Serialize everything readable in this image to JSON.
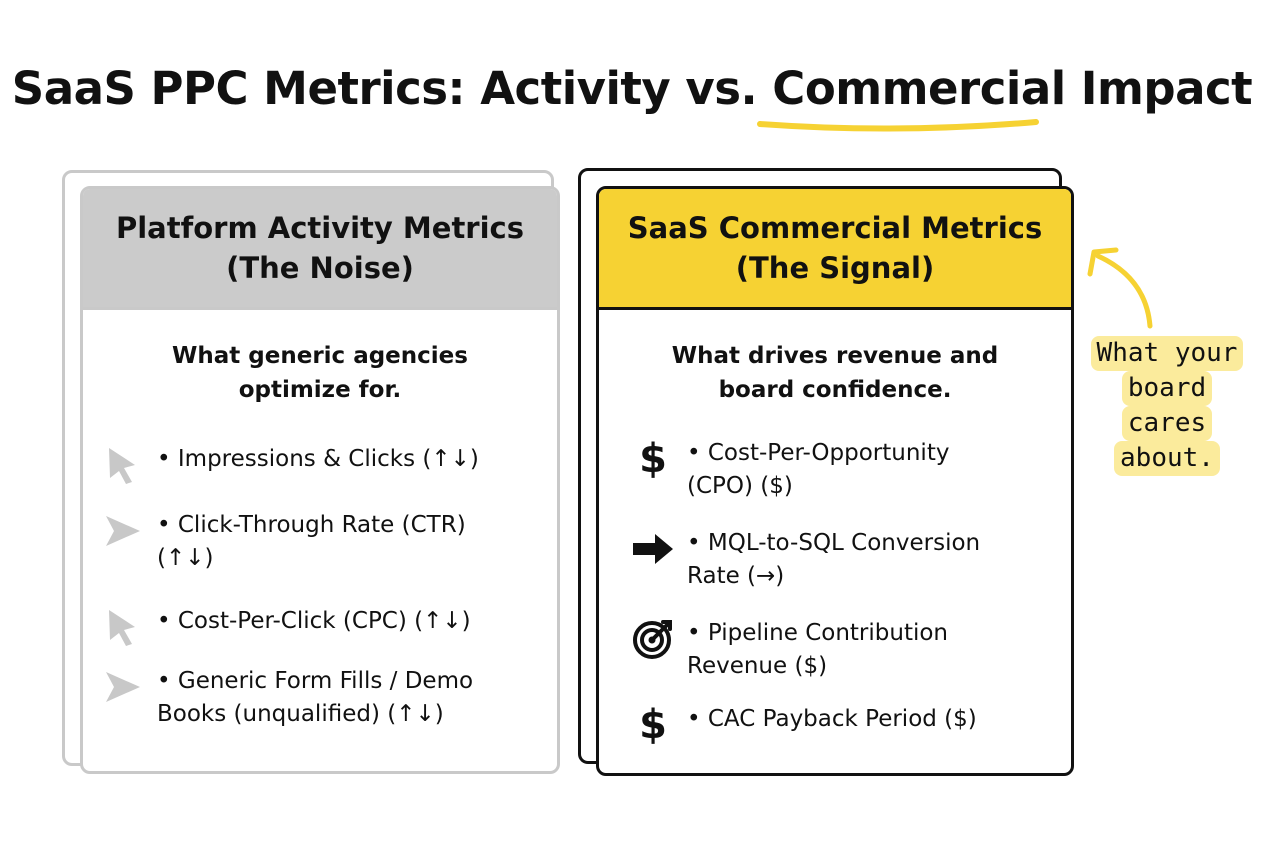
{
  "title": "SaaS PPC Metrics: Activity vs. Commercial Impact",
  "colors": {
    "accent_yellow": "#f6d233",
    "gray_header": "#cbcbcb",
    "gray_icon": "#c8c8c8",
    "note_highlight": "#fbeb9c",
    "dark": "#111111"
  },
  "left_card": {
    "heading": [
      "Platform Activity Metrics",
      "(The Noise)"
    ],
    "subheading": [
      "What generic agencies",
      "optimize for."
    ],
    "items": [
      {
        "icon": "cursor-icon",
        "text": "• Impressions & Clicks (↑↓)"
      },
      {
        "icon": "send-arrow-icon",
        "text": "• Click-Through Rate (CTR)\n(↑↓)"
      },
      {
        "icon": "cursor-icon",
        "text": "• Cost-Per-Click (CPC) (↑↓)"
      },
      {
        "icon": "send-arrow-icon",
        "text": "• Generic Form Fills / Demo\nBooks (unqualified) (↑↓)"
      }
    ]
  },
  "right_card": {
    "heading": [
      "SaaS Commercial Metrics",
      "(The Signal)"
    ],
    "subheading": [
      "What drives revenue and",
      "board confidence."
    ],
    "items": [
      {
        "icon": "dollar-icon",
        "glyph": "$",
        "text": "• Cost-Per-Opportunity\n(CPO) ($)"
      },
      {
        "icon": "right-arrow-icon",
        "text": "• MQL-to-SQL Conversion\nRate (→)"
      },
      {
        "icon": "target-icon",
        "text": "• Pipeline Contribution\nRevenue ($)"
      },
      {
        "icon": "dollar-icon",
        "glyph": "$",
        "text": "• CAC Payback Period ($)"
      }
    ]
  },
  "side_note": [
    "What your",
    "board",
    "cares",
    "about."
  ]
}
